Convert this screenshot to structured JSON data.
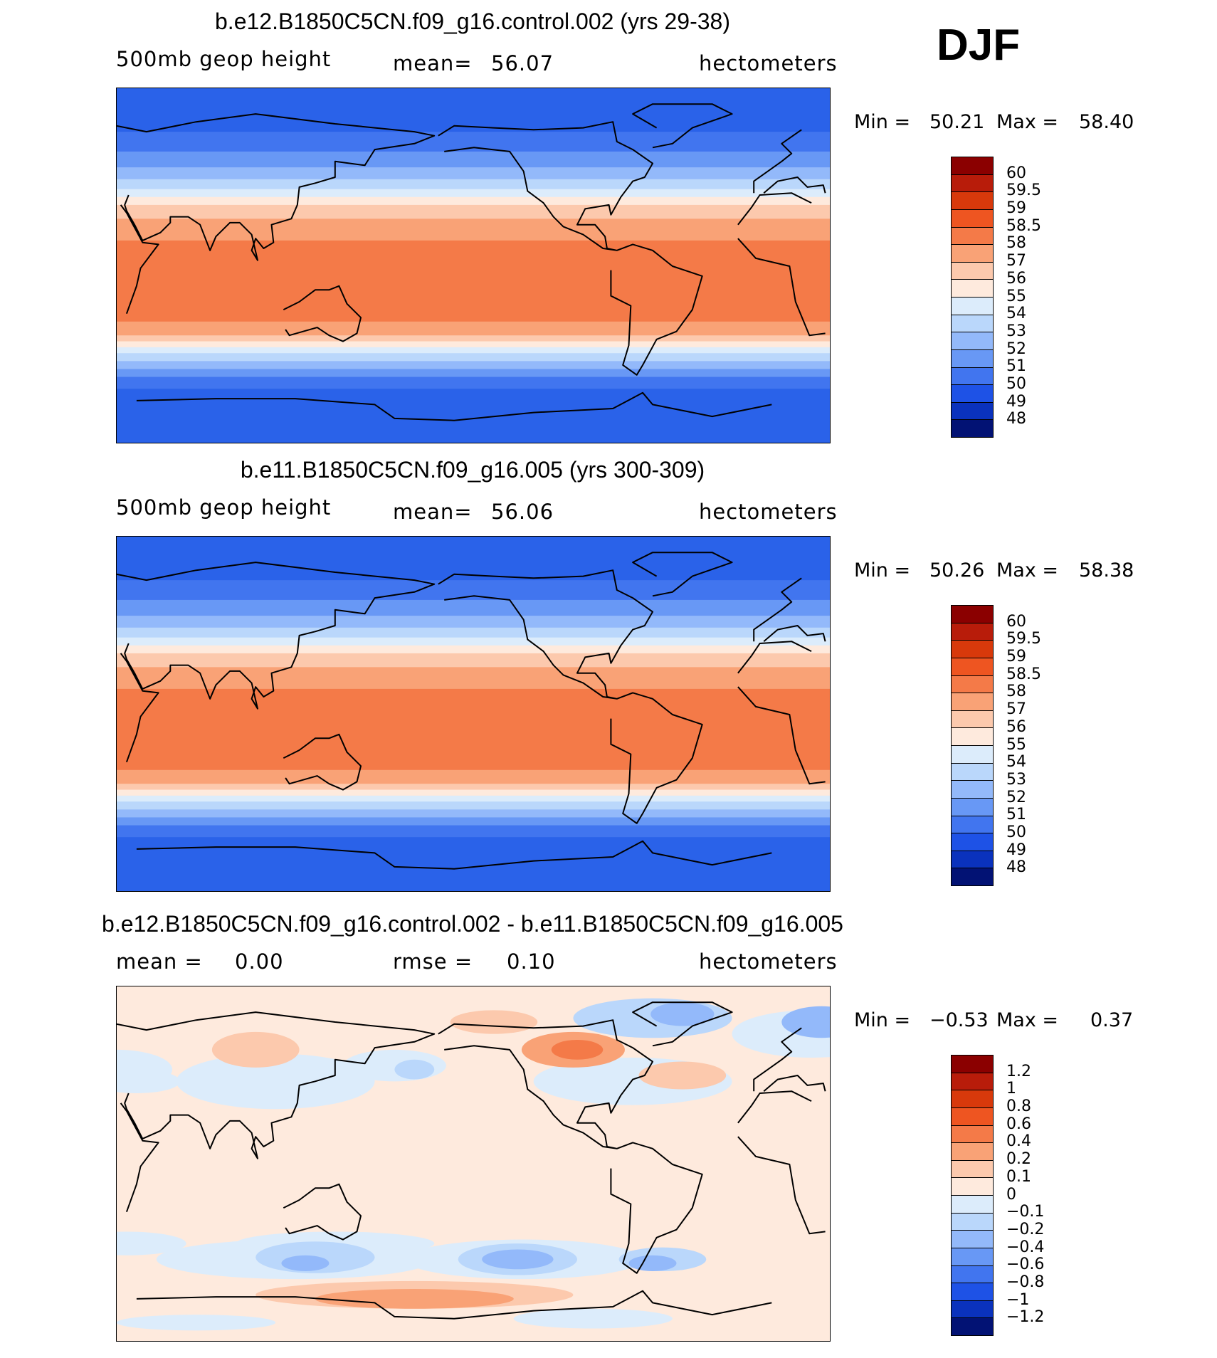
{
  "season": "DJF",
  "chart_data": [
    {
      "type": "heatmap",
      "title": "b.e12.B1850C5CN.f09_g16.control.002 (yrs 29-38)",
      "variable": "500mb  geop  height",
      "stat_label": "mean=",
      "stat_value": "56.07",
      "units": "hectometers",
      "min_label": "Min =",
      "min_value": "50.21",
      "max_label": "Max =",
      "max_value": "58.40",
      "colorbar": {
        "levels": [
          "60",
          "59.5",
          "59",
          "58.5",
          "58",
          "57",
          "56",
          "55",
          "54",
          "53",
          "52",
          "51",
          "50",
          "49",
          "48"
        ],
        "colors": [
          "#8b0000",
          "#b81c0a",
          "#d8390b",
          "#ee5521",
          "#f47a48",
          "#f9a276",
          "#fcc9ad",
          "#feeadd",
          "#dcecfb",
          "#bad7fb",
          "#93b9fa",
          "#6898f5",
          "#4175ef",
          "#1e52e6",
          "#0a32bd",
          "#021274"
        ]
      },
      "bands": [
        {
          "lat": 90,
          "color": "#2a62e9"
        },
        {
          "lat": 68,
          "color": "#4175ef"
        },
        {
          "lat": 58,
          "color": "#6898f5"
        },
        {
          "lat": 50,
          "color": "#93b9fa"
        },
        {
          "lat": 44,
          "color": "#bad7fb"
        },
        {
          "lat": 39,
          "color": "#dcecfb"
        },
        {
          "lat": 35,
          "color": "#feeadd"
        },
        {
          "lat": 31,
          "color": "#fcc9ad"
        },
        {
          "lat": 24,
          "color": "#f9a276"
        },
        {
          "lat": 13,
          "color": "#f47a48"
        },
        {
          "lat": -28,
          "color": "#f9a276"
        },
        {
          "lat": -35,
          "color": "#fcc9ad"
        },
        {
          "lat": -38,
          "color": "#feeadd"
        },
        {
          "lat": -41,
          "color": "#dcecfb"
        },
        {
          "lat": -44,
          "color": "#bad7fb"
        },
        {
          "lat": -48,
          "color": "#93b9fa"
        },
        {
          "lat": -52,
          "color": "#6898f5"
        },
        {
          "lat": -56,
          "color": "#4175ef"
        },
        {
          "lat": -62,
          "color": "#2a62e9"
        }
      ]
    },
    {
      "type": "heatmap",
      "title": "b.e11.B1850C5CN.f09_g16.005 (yrs 300-309)",
      "variable": "500mb  geop  height",
      "stat_label": "mean=",
      "stat_value": "56.06",
      "units": "hectometers",
      "min_label": "Min =",
      "min_value": "50.26",
      "max_label": "Max =",
      "max_value": "58.38",
      "colorbar": {
        "levels": [
          "60",
          "59.5",
          "59",
          "58.5",
          "58",
          "57",
          "56",
          "55",
          "54",
          "53",
          "52",
          "51",
          "50",
          "49",
          "48"
        ],
        "colors": [
          "#8b0000",
          "#b81c0a",
          "#d8390b",
          "#ee5521",
          "#f47a48",
          "#f9a276",
          "#fcc9ad",
          "#feeadd",
          "#dcecfb",
          "#bad7fb",
          "#93b9fa",
          "#6898f5",
          "#4175ef",
          "#1e52e6",
          "#0a32bd",
          "#021274"
        ]
      },
      "bands": [
        {
          "lat": 90,
          "color": "#2a62e9"
        },
        {
          "lat": 68,
          "color": "#4175ef"
        },
        {
          "lat": 58,
          "color": "#6898f5"
        },
        {
          "lat": 50,
          "color": "#93b9fa"
        },
        {
          "lat": 44,
          "color": "#bad7fb"
        },
        {
          "lat": 39,
          "color": "#dcecfb"
        },
        {
          "lat": 35,
          "color": "#feeadd"
        },
        {
          "lat": 31,
          "color": "#fcc9ad"
        },
        {
          "lat": 24,
          "color": "#f9a276"
        },
        {
          "lat": 13,
          "color": "#f47a48"
        },
        {
          "lat": -28,
          "color": "#f9a276"
        },
        {
          "lat": -35,
          "color": "#fcc9ad"
        },
        {
          "lat": -38,
          "color": "#feeadd"
        },
        {
          "lat": -41,
          "color": "#dcecfb"
        },
        {
          "lat": -44,
          "color": "#bad7fb"
        },
        {
          "lat": -48,
          "color": "#93b9fa"
        },
        {
          "lat": -52,
          "color": "#6898f5"
        },
        {
          "lat": -56,
          "color": "#4175ef"
        },
        {
          "lat": -62,
          "color": "#2a62e9"
        }
      ]
    },
    {
      "type": "heatmap",
      "title": "b.e12.B1850C5CN.f09_g16.control.002 - b.e11.B1850C5CN.f09_g16.005",
      "variable": "",
      "stat_label": "mean =",
      "stat_value": "0.00",
      "stat2_label": "rmse =",
      "stat2_value": "0.10",
      "units": "hectometers",
      "min_label": "Min =",
      "min_value": "−0.53",
      "max_label": "Max =",
      "max_value": "0.37",
      "colorbar": {
        "levels": [
          "1.2",
          "1",
          "0.8",
          "0.6",
          "0.4",
          "0.2",
          "0.1",
          "0",
          "−0.1",
          "−0.2",
          "−0.4",
          "−0.6",
          "−0.8",
          "−1",
          "−1.2"
        ],
        "colors": [
          "#8b0000",
          "#b81c0a",
          "#d8390b",
          "#ee5521",
          "#f47a48",
          "#f9a276",
          "#fcc9ad",
          "#feeadd",
          "#dcecfb",
          "#bad7fb",
          "#93b9fa",
          "#6898f5",
          "#4175ef",
          "#1e52e6",
          "#0a32bd",
          "#021274"
        ]
      },
      "background": "#feeadd",
      "regions": [
        {
          "lon": 20,
          "lat": 66,
          "rlon": 40,
          "rlat": 12,
          "color": "#dcecfb"
        },
        {
          "lon": 30,
          "lat": 48,
          "rlon": 28,
          "rlat": 10,
          "color": "#dcecfb"
        },
        {
          "lon": 40,
          "lat": 42,
          "rlon": 22,
          "rlat": 6,
          "color": "#dcecfb"
        },
        {
          "lon": 110,
          "lat": 42,
          "rlon": 50,
          "rlat": 14,
          "color": "#dcecfb"
        },
        {
          "lon": 170,
          "lat": 50,
          "rlon": 26,
          "rlat": 8,
          "color": "#dcecfb"
        },
        {
          "lon": 290,
          "lat": 42,
          "rlon": 50,
          "rlat": 12,
          "color": "#dcecfb"
        },
        {
          "lon": 300,
          "lat": 74,
          "rlon": 40,
          "rlat": 10,
          "color": "#bad7fb"
        },
        {
          "lon": 25,
          "lat": 72,
          "rlon": 20,
          "rlat": 8,
          "color": "#93b9fa"
        },
        {
          "lon": 315,
          "lat": 76,
          "rlon": 16,
          "rlat": 6,
          "color": "#93b9fa"
        },
        {
          "lon": 180,
          "lat": 48,
          "rlon": 10,
          "rlat": 5,
          "color": "#bad7fb"
        },
        {
          "lon": 260,
          "lat": 58,
          "rlon": 26,
          "rlat": 9,
          "color": "#f9a276"
        },
        {
          "lon": 262,
          "lat": 58,
          "rlon": 13,
          "rlat": 5,
          "color": "#f47a48"
        },
        {
          "lon": 100,
          "lat": 58,
          "rlon": 22,
          "rlat": 9,
          "color": "#fcc9ad"
        },
        {
          "lon": 315,
          "lat": 45,
          "rlon": 22,
          "rlat": 7,
          "color": "#fcc9ad"
        },
        {
          "lon": 220,
          "lat": 72,
          "rlon": 22,
          "rlat": 6,
          "color": "#fcc9ad"
        },
        {
          "lon": 120,
          "lat": -48,
          "rlon": 70,
          "rlat": 10,
          "color": "#dcecfb"
        },
        {
          "lon": 235,
          "lat": -48,
          "rlon": 60,
          "rlat": 10,
          "color": "#dcecfb"
        },
        {
          "lon": 140,
          "lat": -40,
          "rlon": 50,
          "rlat": 6,
          "color": "#dcecfb"
        },
        {
          "lon": 35,
          "lat": -40,
          "rlon": 30,
          "rlat": 6,
          "color": "#dcecfb"
        },
        {
          "lon": 130,
          "lat": -47,
          "rlon": 30,
          "rlat": 8,
          "color": "#bad7fb"
        },
        {
          "lon": 232,
          "lat": -48,
          "rlon": 30,
          "rlat": 8,
          "color": "#bad7fb"
        },
        {
          "lon": 305,
          "lat": -48,
          "rlon": 22,
          "rlat": 6,
          "color": "#bad7fb"
        },
        {
          "lon": 232,
          "lat": -48,
          "rlon": 18,
          "rlat": 5,
          "color": "#93b9fa"
        },
        {
          "lon": 125,
          "lat": -50,
          "rlon": 12,
          "rlat": 4,
          "color": "#93b9fa"
        },
        {
          "lon": 300,
          "lat": -50,
          "rlon": 12,
          "rlat": 4,
          "color": "#93b9fa"
        },
        {
          "lon": 180,
          "lat": -66,
          "rlon": 80,
          "rlat": 7,
          "color": "#fcc9ad"
        },
        {
          "lon": 180,
          "lat": -68,
          "rlon": 50,
          "rlat": 5,
          "color": "#f9a276"
        },
        {
          "lon": 70,
          "lat": -80,
          "rlon": 40,
          "rlat": 4,
          "color": "#dcecfb"
        },
        {
          "lon": 270,
          "lat": -78,
          "rlon": 40,
          "rlat": 5,
          "color": "#dcecfb"
        }
      ]
    }
  ]
}
